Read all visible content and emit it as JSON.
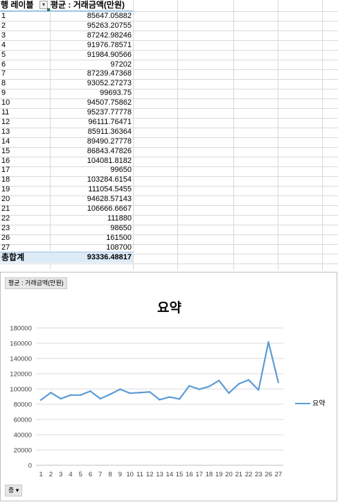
{
  "pivot": {
    "row_label_header": "행 레이블",
    "value_header": "평균 : 거래금액(만원)",
    "rows": [
      {
        "label": "1",
        "value": "85647.05882"
      },
      {
        "label": "2",
        "value": "95263.20755"
      },
      {
        "label": "3",
        "value": "87242.98246"
      },
      {
        "label": "4",
        "value": "91976.78571"
      },
      {
        "label": "5",
        "value": "91984.90566"
      },
      {
        "label": "6",
        "value": "97202"
      },
      {
        "label": "7",
        "value": "87239.47368"
      },
      {
        "label": "8",
        "value": "93052.27273"
      },
      {
        "label": "9",
        "value": "99693.75"
      },
      {
        "label": "10",
        "value": "94507.75862"
      },
      {
        "label": "11",
        "value": "95237.77778"
      },
      {
        "label": "12",
        "value": "96111.76471"
      },
      {
        "label": "13",
        "value": "85911.36364"
      },
      {
        "label": "14",
        "value": "89490.27778"
      },
      {
        "label": "15",
        "value": "86843.47826"
      },
      {
        "label": "16",
        "value": "104081.8182"
      },
      {
        "label": "17",
        "value": "99650"
      },
      {
        "label": "18",
        "value": "103284.6154"
      },
      {
        "label": "19",
        "value": "111054.5455"
      },
      {
        "label": "20",
        "value": "94628.57143"
      },
      {
        "label": "21",
        "value": "106666.6667"
      },
      {
        "label": "22",
        "value": "111880"
      },
      {
        "label": "23",
        "value": "98650"
      },
      {
        "label": "26",
        "value": "161500"
      },
      {
        "label": "27",
        "value": "108700"
      }
    ],
    "total_label": "총합계",
    "total_value": "93336.48817"
  },
  "chart_field_button": "평균 : 거래금액(만원)",
  "chart_axis_button": "층",
  "chart_data": {
    "type": "line",
    "title": "요약",
    "categories": [
      "1",
      "2",
      "3",
      "4",
      "5",
      "6",
      "7",
      "8",
      "9",
      "10",
      "11",
      "12",
      "13",
      "14",
      "15",
      "16",
      "17",
      "18",
      "19",
      "20",
      "21",
      "22",
      "23",
      "26",
      "27"
    ],
    "series": [
      {
        "name": "요약",
        "values": [
          85647.05882,
          95263.20755,
          87242.98246,
          91976.78571,
          91984.90566,
          97202,
          87239.47368,
          93052.27273,
          99693.75,
          94507.75862,
          95237.77778,
          96111.76471,
          85911.36364,
          89490.27778,
          86843.47826,
          104081.8182,
          99650,
          103284.6154,
          111054.5455,
          94628.57143,
          106666.6667,
          111880,
          98650,
          161500,
          108700
        ]
      }
    ],
    "ylim": [
      0,
      180000
    ],
    "yticks": [
      0,
      20000,
      40000,
      60000,
      80000,
      100000,
      120000,
      140000,
      160000,
      180000
    ],
    "xlabel": "",
    "ylabel": "",
    "grid": true,
    "legend": "right",
    "color": "#5b9bd5"
  }
}
